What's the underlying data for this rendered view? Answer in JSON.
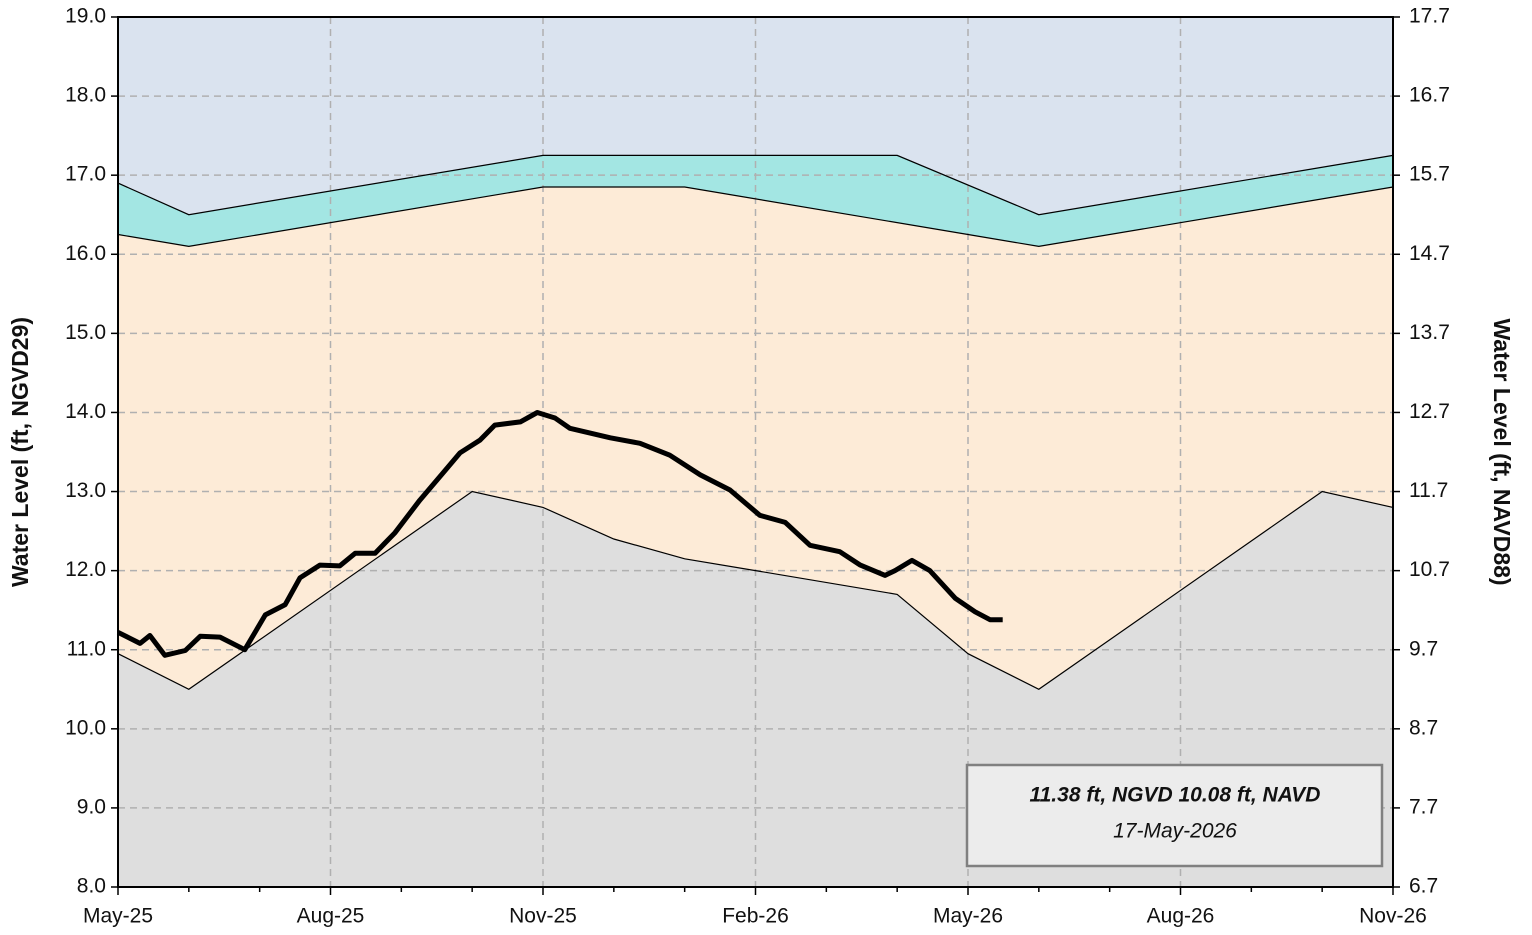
{
  "chart_data": {
    "type": "area",
    "y_label": "Water Level (ft, NGVD29)",
    "y2_label": "Water Level (ft, NAVD88)",
    "background": "#dae3ef",
    "xlim": [
      0,
      18
    ],
    "xticks": [
      {
        "value": 0,
        "label": "May-25"
      },
      {
        "value": 3,
        "label": "Aug-25"
      },
      {
        "value": 6,
        "label": "Nov-25"
      },
      {
        "value": 9,
        "label": "Feb-26"
      },
      {
        "value": 12,
        "label": "May-26"
      },
      {
        "value": 15,
        "label": "Aug-26"
      },
      {
        "value": 18,
        "label": "Nov-26"
      }
    ],
    "xminorticks": [
      1,
      2,
      4,
      5,
      7,
      8,
      10,
      11,
      13,
      14,
      16,
      17
    ],
    "ylim": [
      8,
      19
    ],
    "yticks": [
      {
        "value": 8,
        "label": "8.0"
      },
      {
        "value": 9,
        "label": "9.0"
      },
      {
        "value": 10,
        "label": "10.0"
      },
      {
        "value": 11,
        "label": "11.0"
      },
      {
        "value": 12,
        "label": "12.0"
      },
      {
        "value": 13,
        "label": "13.0"
      },
      {
        "value": 14,
        "label": "14.0"
      },
      {
        "value": 15,
        "label": "15.0"
      },
      {
        "value": 16,
        "label": "16.0"
      },
      {
        "value": 17,
        "label": "17.0"
      },
      {
        "value": 18,
        "label": "18.0"
      },
      {
        "value": 19,
        "label": "19.0"
      }
    ],
    "y2lim": [
      6.7,
      17.7
    ],
    "y2ticks": [
      6.7,
      7.7,
      8.7,
      9.7,
      10.7,
      11.7,
      12.7,
      13.7,
      14.7,
      15.7,
      16.7,
      17.7
    ],
    "grid": true,
    "series": [
      {
        "type": "area",
        "color": "#a3e6e3",
        "x": [
          0,
          1,
          6,
          11,
          13,
          18
        ],
        "values": [
          16.9,
          16.5,
          17.25,
          17.25,
          16.5,
          17.25
        ]
      },
      {
        "type": "area",
        "color": "#fdebd7",
        "x": [
          0,
          1,
          6,
          8,
          12,
          13,
          18
        ],
        "values": [
          16.25,
          16.1,
          16.85,
          16.85,
          16.25,
          16.1,
          16.85
        ]
      },
      {
        "type": "area",
        "color": "#dedede",
        "x": [
          0,
          1,
          5,
          6,
          7,
          8,
          9,
          11,
          12,
          13,
          17,
          18
        ],
        "values": [
          10.95,
          10.5,
          13.0,
          12.8,
          12.4,
          12.15,
          12.0,
          11.7,
          10.95,
          10.5,
          13.0,
          12.8
        ]
      },
      {
        "type": "line",
        "color": "#000000",
        "x": [
          0,
          0.31,
          0.45,
          0.66,
          0.95,
          1.16,
          1.44,
          1.79,
          2.08,
          2.36,
          2.57,
          2.85,
          3.13,
          3.35,
          3.63,
          3.91,
          4.26,
          4.62,
          4.83,
          5.11,
          5.32,
          5.68,
          5.92,
          6.17,
          6.38,
          6.95,
          7.37,
          7.79,
          8.22,
          8.64,
          9.06,
          9.42,
          9.77,
          10.19,
          10.48,
          10.83,
          10.97,
          11.21,
          11.46,
          11.82,
          12.1,
          12.31,
          12.49
        ],
        "values": [
          11.22,
          11.08,
          11.18,
          10.93,
          10.99,
          11.17,
          11.16,
          11.0,
          11.44,
          11.57,
          11.91,
          12.07,
          12.06,
          12.22,
          12.22,
          12.48,
          12.89,
          13.27,
          13.49,
          13.65,
          13.84,
          13.88,
          14.0,
          13.93,
          13.8,
          13.68,
          13.61,
          13.46,
          13.21,
          13.02,
          12.7,
          12.61,
          12.32,
          12.24,
          12.07,
          11.94,
          12.0,
          12.13,
          12.0,
          11.65,
          11.48,
          11.38,
          11.38
        ]
      }
    ],
    "annotation": {
      "line1": "11.38 ft, NGVD 10.08 ft, NAVD",
      "line2": "17-May-2026"
    }
  }
}
